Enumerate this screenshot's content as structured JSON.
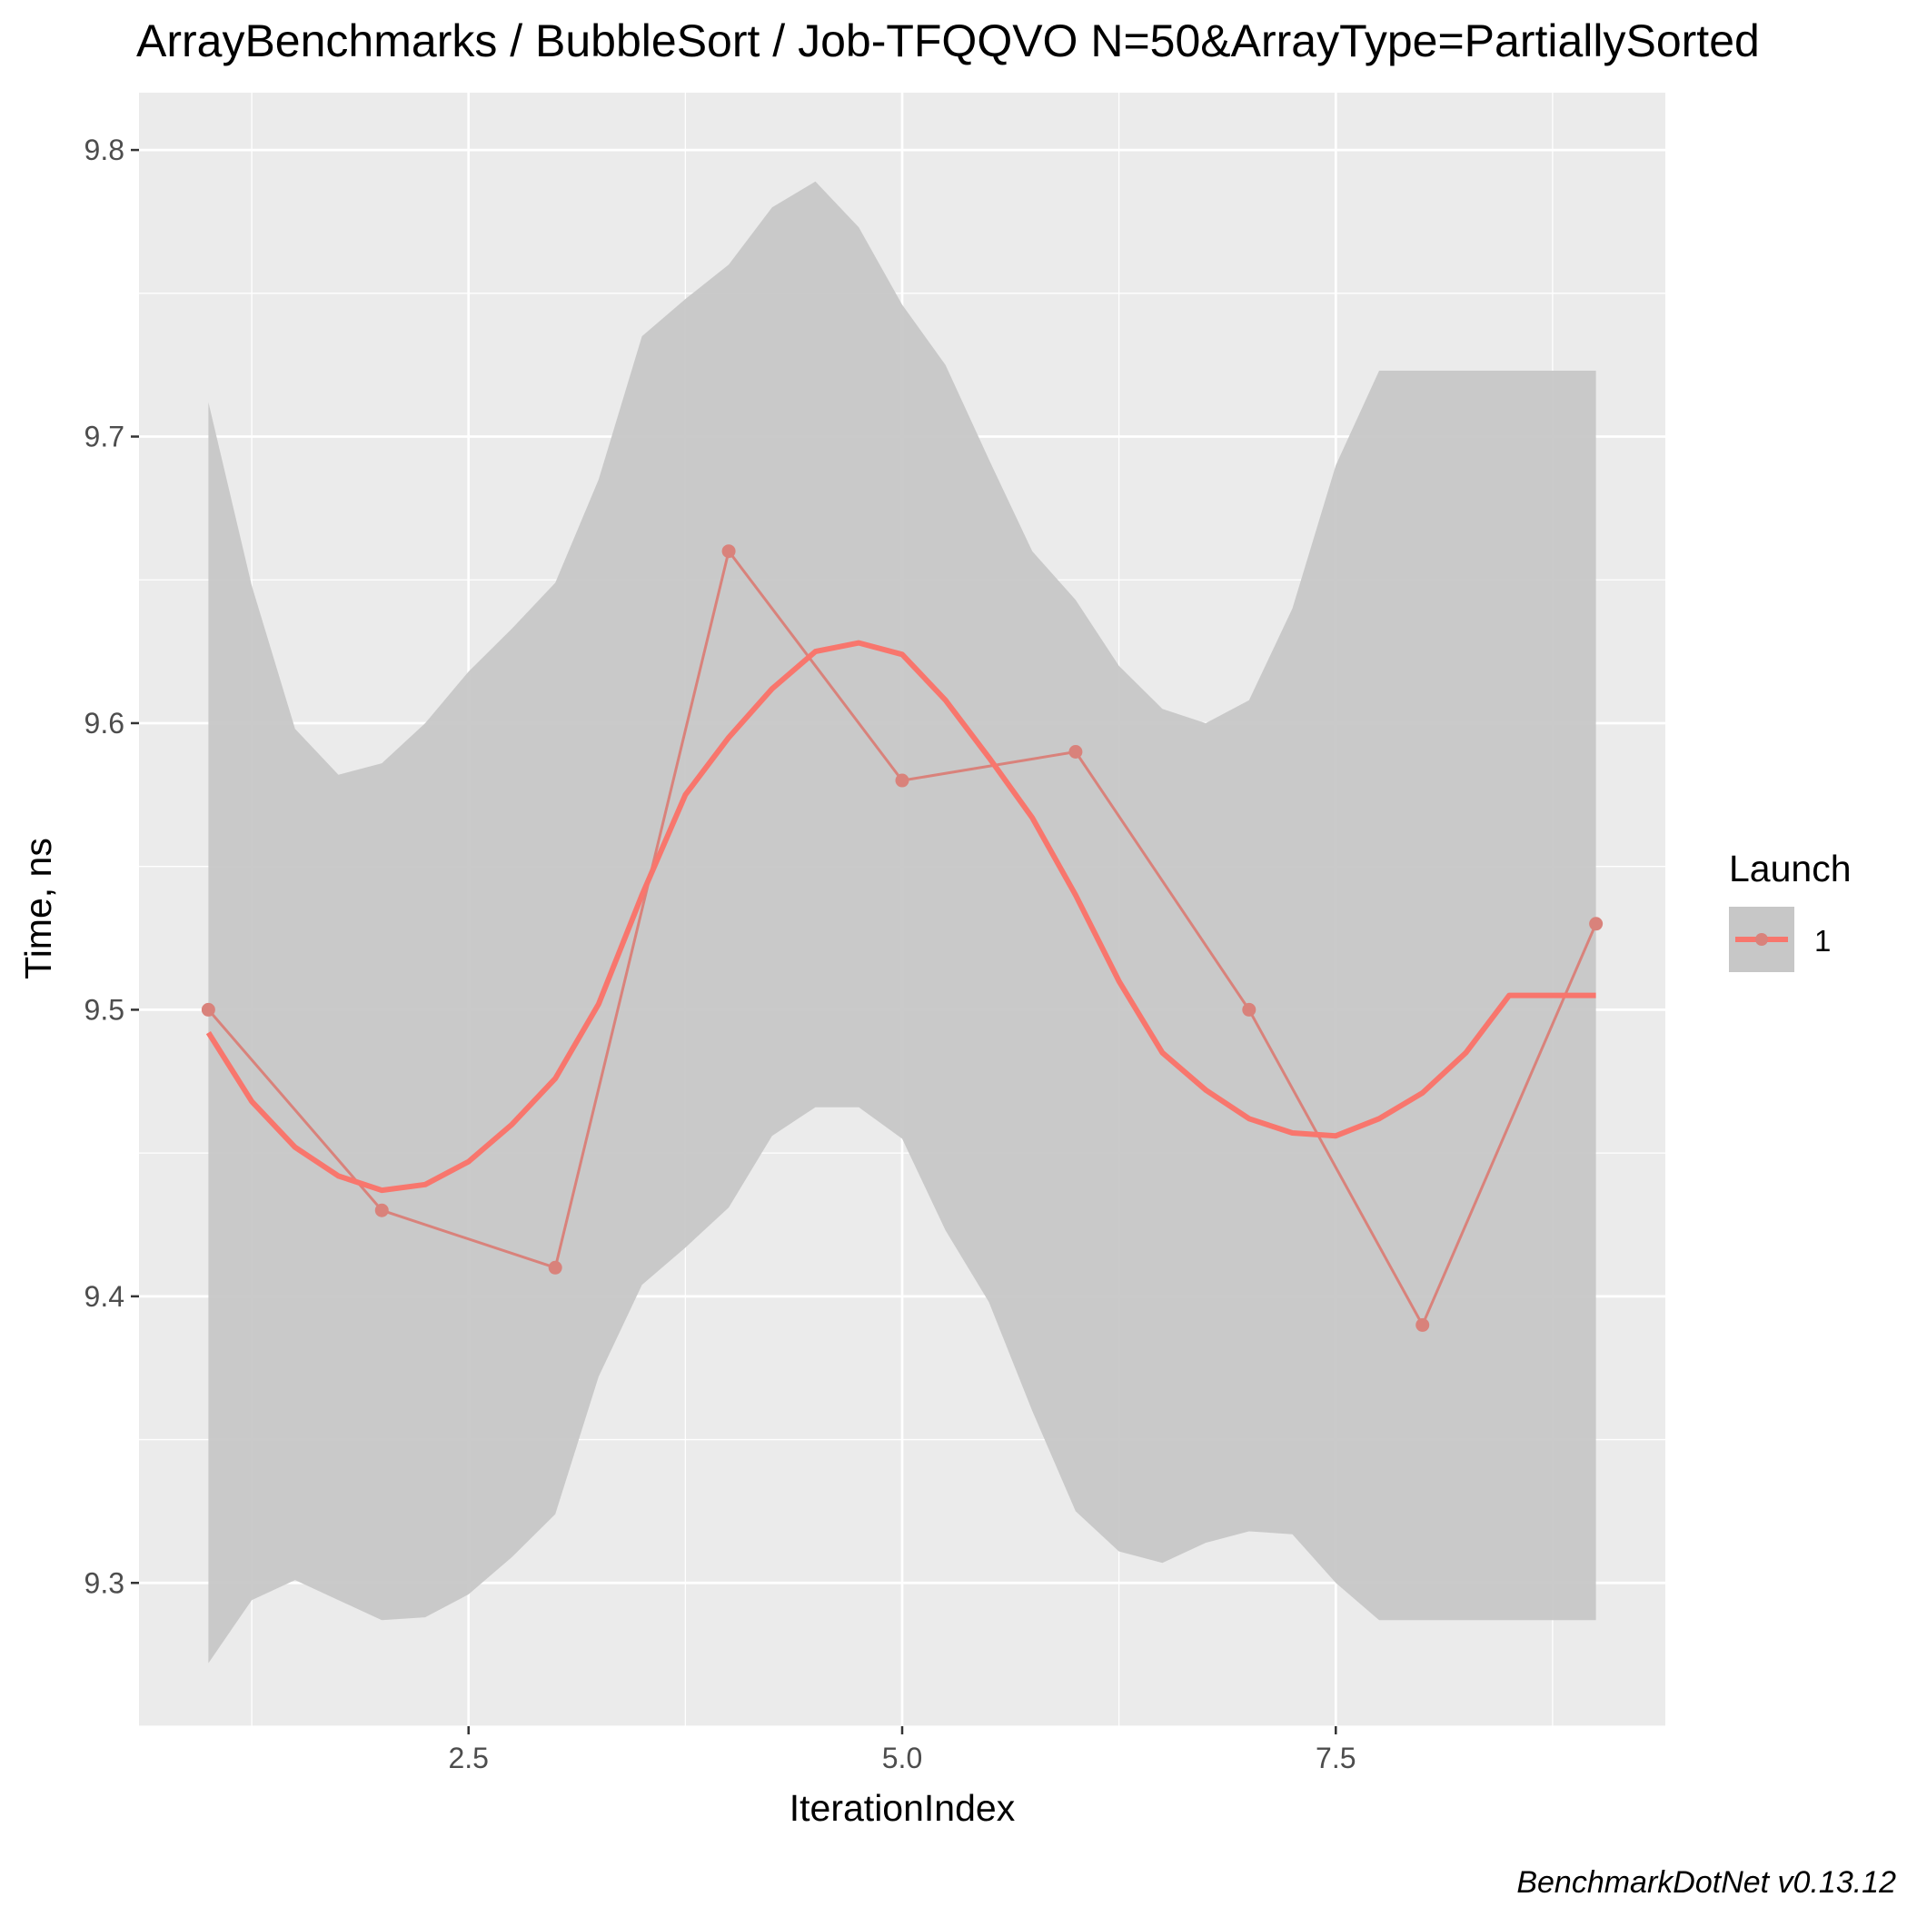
{
  "chart_data": {
    "type": "line",
    "title": "ArrayBenchmarks / BubbleSort / Job-TFQQVO N=50&ArrayType=PartiallySorted",
    "xlabel": "IterationIndex",
    "ylabel": "Time, ns",
    "xlim": [
      0.6,
      9.4
    ],
    "ylim": [
      9.25,
      9.82
    ],
    "x_ticks": [
      2.5,
      5.0,
      7.5
    ],
    "x_tick_labels": [
      "2.5",
      "5.0",
      "7.5"
    ],
    "y_ticks": [
      9.3,
      9.4,
      9.5,
      9.6,
      9.7,
      9.8
    ],
    "y_tick_labels": [
      "9.3",
      "9.4",
      "9.5",
      "9.6",
      "9.7",
      "9.8"
    ],
    "grid": true,
    "legend": {
      "title": "Launch",
      "position": "right",
      "entries": [
        "1"
      ]
    },
    "series": [
      {
        "name": "1",
        "x": [
          1,
          2,
          3,
          4,
          5,
          6,
          7,
          8,
          9
        ],
        "values": [
          9.5,
          9.43,
          9.41,
          9.66,
          9.58,
          9.59,
          9.5,
          9.39,
          9.53
        ]
      }
    ],
    "smooth": {
      "x": [
        1.0,
        1.25,
        1.5,
        1.75,
        2.0,
        2.25,
        2.5,
        2.75,
        3.0,
        3.25,
        3.5,
        3.75,
        4.0,
        4.25,
        4.5,
        4.75,
        5.0,
        5.25,
        5.5,
        5.75,
        6.0,
        6.25,
        6.5,
        6.75,
        7.0,
        7.25,
        7.5,
        7.75,
        8.0,
        8.25,
        8.5,
        8.75,
        9.0
      ],
      "y": [
        9.492,
        9.468,
        9.452,
        9.442,
        9.437,
        9.439,
        9.447,
        9.46,
        9.476,
        9.502,
        9.54,
        9.575,
        9.595,
        9.612,
        9.625,
        9.628,
        9.624,
        9.608,
        9.588,
        9.567,
        9.54,
        9.51,
        9.485,
        9.472,
        9.462,
        9.457,
        9.456,
        9.462,
        9.471,
        9.485,
        9.505,
        9.505,
        9.505
      ],
      "upper": [
        9.712,
        9.648,
        9.598,
        9.582,
        9.586,
        9.6,
        9.618,
        9.633,
        9.649,
        9.685,
        9.735,
        9.748,
        9.76,
        9.78,
        9.789,
        9.773,
        9.746,
        9.725,
        9.692,
        9.66,
        9.643,
        9.62,
        9.605,
        9.6,
        9.608,
        9.64,
        9.69,
        9.723,
        9.723,
        9.723,
        9.723,
        9.723,
        9.723
      ],
      "lower": [
        9.272,
        9.294,
        9.301,
        9.294,
        9.287,
        9.288,
        9.296,
        9.309,
        9.324,
        9.372,
        9.404,
        9.417,
        9.431,
        9.456,
        9.466,
        9.466,
        9.455,
        9.423,
        9.398,
        9.36,
        9.325,
        9.311,
        9.307,
        9.314,
        9.318,
        9.317,
        9.3,
        9.287,
        9.287,
        9.287,
        9.287,
        9.287,
        9.287
      ]
    },
    "colors": {
      "panel_background": "#ebebeb",
      "grid": "#ffffff",
      "ribbon": "#c7c7c7",
      "smooth_line": "#f8766d",
      "raw_line": "#d9827b",
      "points": "#d9827b"
    }
  },
  "caption": "BenchmarkDotNet v0.13.12"
}
